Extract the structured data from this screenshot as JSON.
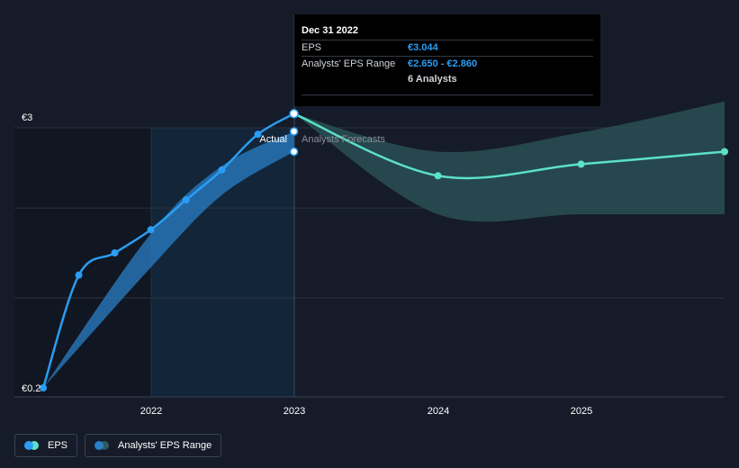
{
  "chart_data": {
    "type": "line",
    "currency": "€",
    "y_axis": {
      "min": 0.2,
      "max": 3,
      "tick_labels": [
        "€3",
        "€0.2"
      ]
    },
    "x_axis": {
      "range": [
        "2021-04-01",
        "2025-12-31"
      ],
      "tick_labels": [
        "2022",
        "2023",
        "2024",
        "2025"
      ]
    },
    "region_labels": {
      "actual": "Actual",
      "forecast": "Analysts Forecasts"
    },
    "series": [
      {
        "name": "EPS",
        "type": "actual",
        "color": "#2a9df4",
        "points": [
          {
            "x": "2021-03-31",
            "y": 0.2
          },
          {
            "x": "2021-06-30",
            "y": 1.37
          },
          {
            "x": "2021-09-30",
            "y": 1.6
          },
          {
            "x": "2021-12-31",
            "y": 1.84
          },
          {
            "x": "2022-03-31",
            "y": 2.15
          },
          {
            "x": "2022-06-30",
            "y": 2.46
          },
          {
            "x": "2022-09-30",
            "y": 2.83
          },
          {
            "x": "2022-12-31",
            "y": 3.044
          }
        ]
      },
      {
        "name": "EPS",
        "type": "forecast",
        "color": "#5ce1c9",
        "points": [
          {
            "x": "2022-12-31",
            "y": 3.044
          },
          {
            "x": "2023-12-31",
            "y": 2.4
          },
          {
            "x": "2024-12-31",
            "y": 2.52
          },
          {
            "x": "2025-12-31",
            "y": 2.65
          }
        ]
      },
      {
        "name": "Analysts' EPS Range",
        "type": "range-actual",
        "color": "#2a7fc7",
        "points": [
          {
            "x": "2021-03-31",
            "low": 0.2,
            "high": 0.2
          },
          {
            "x": "2021-12-31",
            "low": 1.45,
            "high": 1.8
          },
          {
            "x": "2022-06-30",
            "low": 2.2,
            "high": 2.5
          },
          {
            "x": "2022-12-31",
            "low": 2.65,
            "high": 2.86
          }
        ],
        "markers": [
          {
            "x": "2022-12-31",
            "y": 2.86
          },
          {
            "x": "2022-12-31",
            "y": 2.65
          }
        ]
      },
      {
        "name": "Analysts' EPS Range",
        "type": "range-forecast",
        "color": "#2e5a5c",
        "points": [
          {
            "x": "2022-12-31",
            "low": 3.044,
            "high": 3.044
          },
          {
            "x": "2023-12-31",
            "low": 2.0,
            "high": 2.65
          },
          {
            "x": "2024-12-31",
            "low": 2.0,
            "high": 2.85
          },
          {
            "x": "2025-12-31",
            "low": 2.0,
            "high": 3.17
          }
        ]
      }
    ],
    "legend": {
      "placement": "bottom-left",
      "items": [
        {
          "label": "EPS",
          "colors": [
            "#2a9df4",
            "#5ce1c9"
          ]
        },
        {
          "label": "Analysts' EPS Range",
          "colors": [
            "#2a7fc7",
            "#2e5a5c"
          ]
        }
      ]
    }
  },
  "tooltip": {
    "date": "Dec 31 2022",
    "rows": [
      {
        "key": "EPS",
        "value": "€3.044"
      },
      {
        "key": "Analysts' EPS Range",
        "value": "€2.650 - €2.860"
      },
      {
        "key": "",
        "value": "6 Analysts"
      }
    ]
  }
}
